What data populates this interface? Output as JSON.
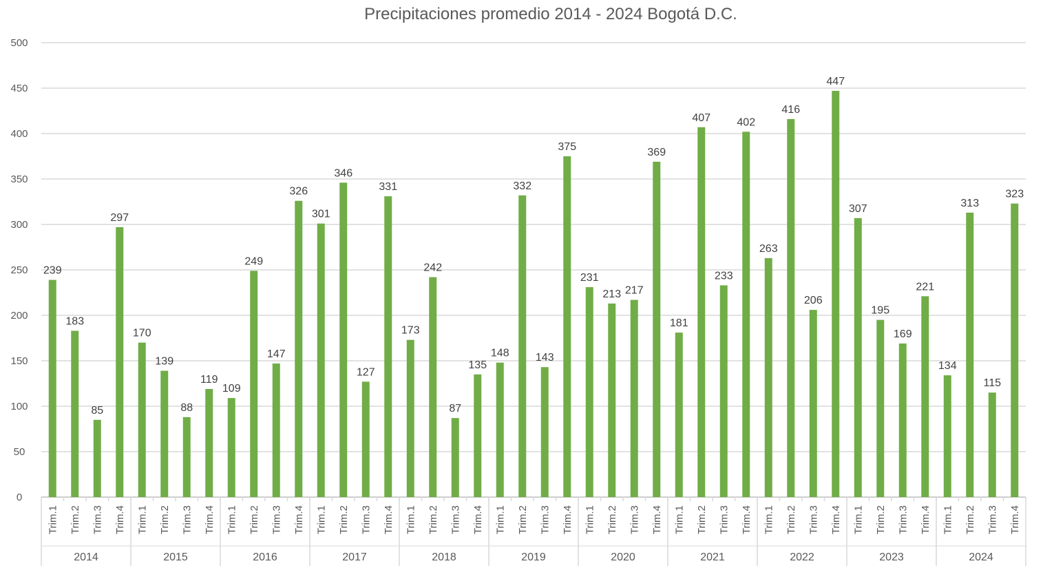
{
  "chart_data": {
    "type": "bar",
    "title": "Precipitaciones promedio 2014 - 2024 Bogotá D.C.",
    "xlabel": "",
    "ylabel": "",
    "ylim": [
      0,
      500
    ],
    "yticks": [
      0,
      50,
      100,
      150,
      200,
      250,
      300,
      350,
      400,
      450,
      500
    ],
    "grid": true,
    "legend": "none",
    "bar_color": "#70AD47",
    "groups": [
      {
        "label": "2014",
        "quarters": [
          "Trim.1",
          "Trim.2",
          "Trim.3",
          "Trim.4"
        ],
        "values": [
          239,
          183,
          85,
          297
        ]
      },
      {
        "label": "2015",
        "quarters": [
          "Trim.1",
          "Trim.2",
          "Trim.3",
          "Trim.4"
        ],
        "values": [
          170,
          139,
          88,
          119
        ]
      },
      {
        "label": "2016",
        "quarters": [
          "Trim.1",
          "Trim.2",
          "Trim.3",
          "Trim.4"
        ],
        "values": [
          109,
          249,
          147,
          326
        ]
      },
      {
        "label": "2017",
        "quarters": [
          "Trim.1",
          "Trim.2",
          "Trim.3",
          "Trim.4"
        ],
        "values": [
          301,
          346,
          127,
          331
        ]
      },
      {
        "label": "2018",
        "quarters": [
          "Trim.1",
          "Trim.2",
          "Trim.3",
          "Trim.4"
        ],
        "values": [
          173,
          242,
          87,
          135
        ]
      },
      {
        "label": "2019",
        "quarters": [
          "Trim.1",
          "Trim.2",
          "Trim.3",
          "Trim.4"
        ],
        "values": [
          148,
          332,
          143,
          375
        ]
      },
      {
        "label": "2020",
        "quarters": [
          "Trim.1",
          "Trim.2",
          "Trim.3",
          "Trim.4"
        ],
        "values": [
          231,
          213,
          217,
          369
        ]
      },
      {
        "label": "2021",
        "quarters": [
          "Trim.1",
          "Trim.2",
          "Trim.3",
          "Trim.4"
        ],
        "values": [
          181,
          407,
          233,
          402
        ]
      },
      {
        "label": "2022",
        "quarters": [
          "Trim.1",
          "Trim.2",
          "Trim.3",
          "Trim.4"
        ],
        "values": [
          263,
          416,
          206,
          447
        ]
      },
      {
        "label": "2023",
        "quarters": [
          "Trim.1",
          "Trim.2",
          "Trim.3",
          "Trim.4"
        ],
        "values": [
          307,
          195,
          169,
          221
        ]
      },
      {
        "label": "2024",
        "quarters": [
          "Trim.1",
          "Trim.2",
          "Trim.3",
          "Trim.4"
        ],
        "values": [
          134,
          313,
          115,
          323
        ]
      }
    ]
  }
}
